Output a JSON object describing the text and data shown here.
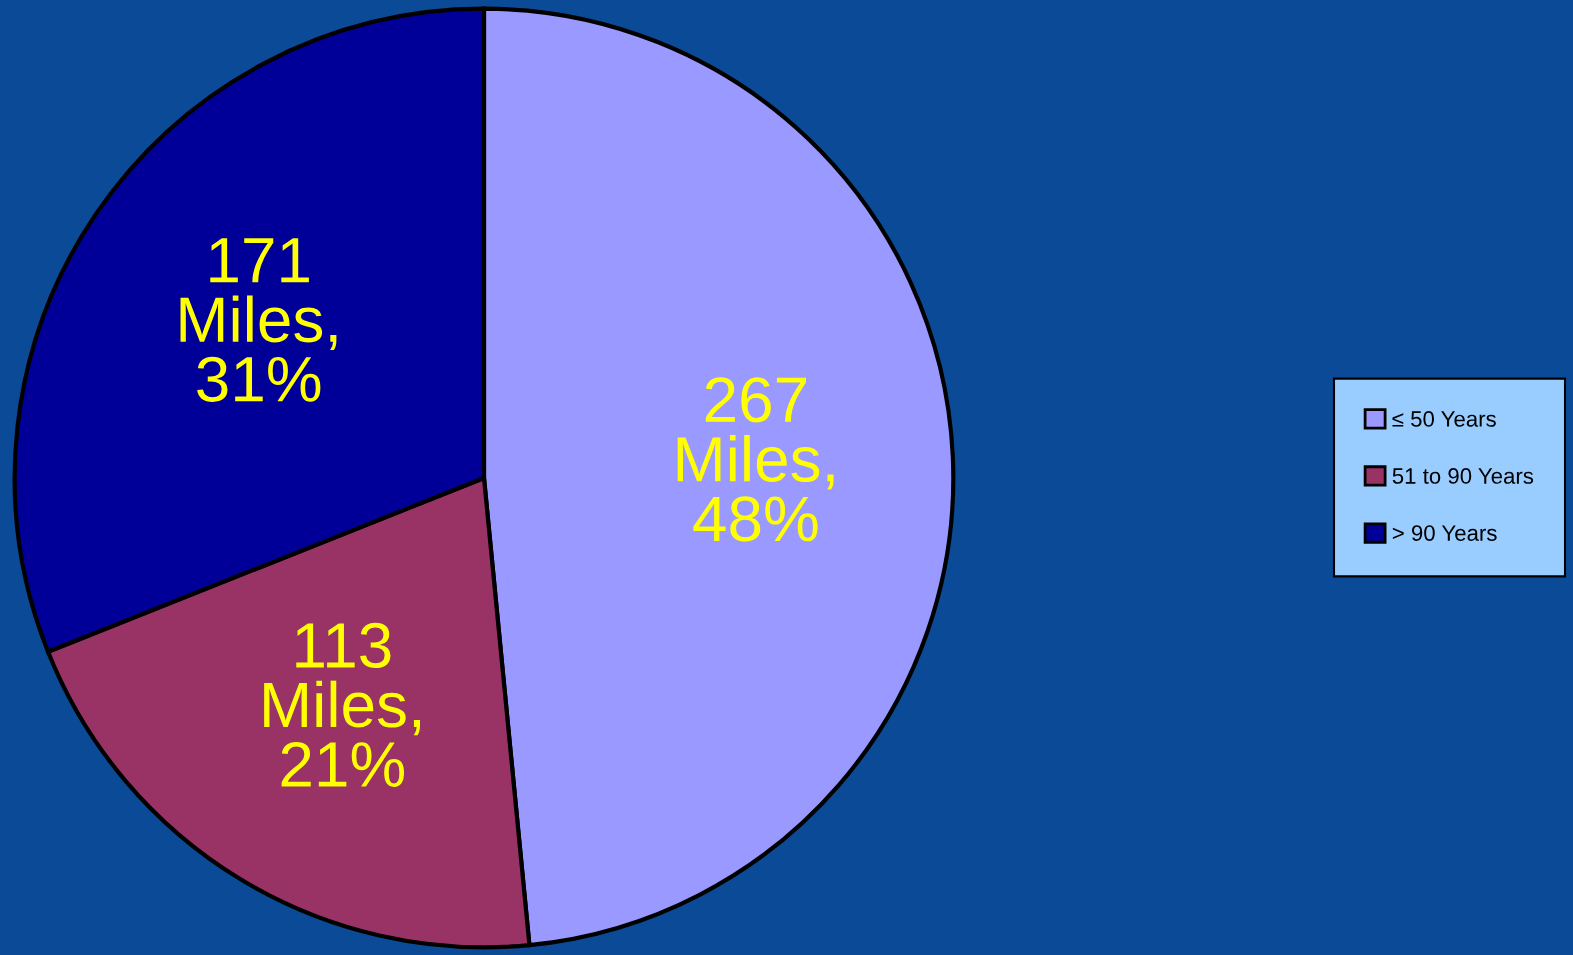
{
  "chart_data": {
    "type": "pie",
    "categories": [
      "≤ 50 Years",
      "51 to 90 Years",
      "> 90 Years"
    ],
    "values": [
      267,
      113,
      171
    ],
    "colors": [
      "#9999ff",
      "#993366",
      "#000099"
    ],
    "value_labels": [
      "267\nMiles,\n48%",
      "113\nMiles,\n21%",
      "171\nMiles,\n31%"
    ],
    "legend": "right"
  }
}
